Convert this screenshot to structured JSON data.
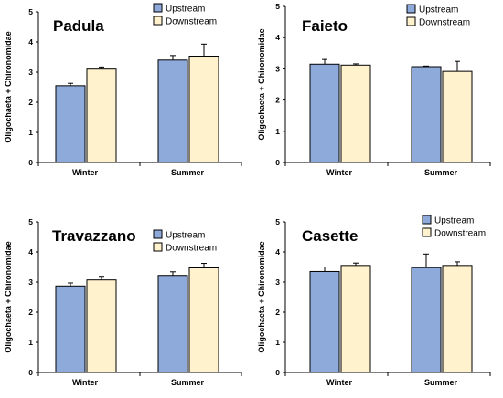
{
  "chart_data": [
    {
      "type": "bar",
      "title": "Padula",
      "ylabel": "Oligochaeta + Chironomidae",
      "xlabel": "",
      "ylim": [
        0,
        5
      ],
      "yticks": [
        0,
        1,
        2,
        3,
        4,
        5
      ],
      "categories": [
        "Winter",
        "Summer"
      ],
      "legend": "top-center",
      "series": [
        {
          "name": "Upstream",
          "color": "#8EAADB",
          "values": [
            2.55,
            3.4
          ],
          "errors": [
            0.08,
            0.15
          ]
        },
        {
          "name": "Downstream",
          "color": "#FFF2CC",
          "values": [
            3.1,
            3.53
          ],
          "errors": [
            0.07,
            0.4
          ]
        }
      ]
    },
    {
      "type": "bar",
      "title": "Faieto",
      "ylabel": "Oligochaeta + Chironomidae",
      "xlabel": "",
      "ylim": [
        0,
        5
      ],
      "yticks": [
        0,
        1,
        2,
        3,
        4,
        5
      ],
      "categories": [
        "Winter",
        "Summer"
      ],
      "legend": "top-center",
      "series": [
        {
          "name": "Upstream",
          "color": "#8EAADB",
          "values": [
            3.15,
            3.07
          ],
          "errors": [
            0.15,
            0.02
          ]
        },
        {
          "name": "Downstream",
          "color": "#FFF2CC",
          "values": [
            3.12,
            2.92
          ],
          "errors": [
            0.04,
            0.32
          ]
        }
      ]
    },
    {
      "type": "bar",
      "title": "Travazzano",
      "ylabel": "Oligochaeta + Chironomidae",
      "xlabel": "",
      "ylim": [
        0,
        5
      ],
      "yticks": [
        0,
        1,
        2,
        3,
        4,
        5
      ],
      "categories": [
        "Winter",
        "Summer"
      ],
      "legend": "top-center",
      "series": [
        {
          "name": "Upstream",
          "color": "#8EAADB",
          "values": [
            2.87,
            3.22
          ],
          "errors": [
            0.1,
            0.12
          ]
        },
        {
          "name": "Downstream",
          "color": "#FFF2CC",
          "values": [
            3.07,
            3.47
          ],
          "errors": [
            0.12,
            0.15
          ]
        }
      ]
    },
    {
      "type": "bar",
      "title": "Casette",
      "ylabel": "Oligochaeta + Chironomidae",
      "xlabel": "",
      "ylim": [
        0,
        5
      ],
      "yticks": [
        0,
        1,
        2,
        3,
        4,
        5
      ],
      "categories": [
        "Winter",
        "Summer"
      ],
      "legend": "top-center",
      "series": [
        {
          "name": "Upstream",
          "color": "#8EAADB",
          "values": [
            3.35,
            3.48
          ],
          "errors": [
            0.15,
            0.45
          ]
        },
        {
          "name": "Downstream",
          "color": "#FFF2CC",
          "values": [
            3.55,
            3.55
          ],
          "errors": [
            0.08,
            0.12
          ]
        }
      ]
    }
  ]
}
